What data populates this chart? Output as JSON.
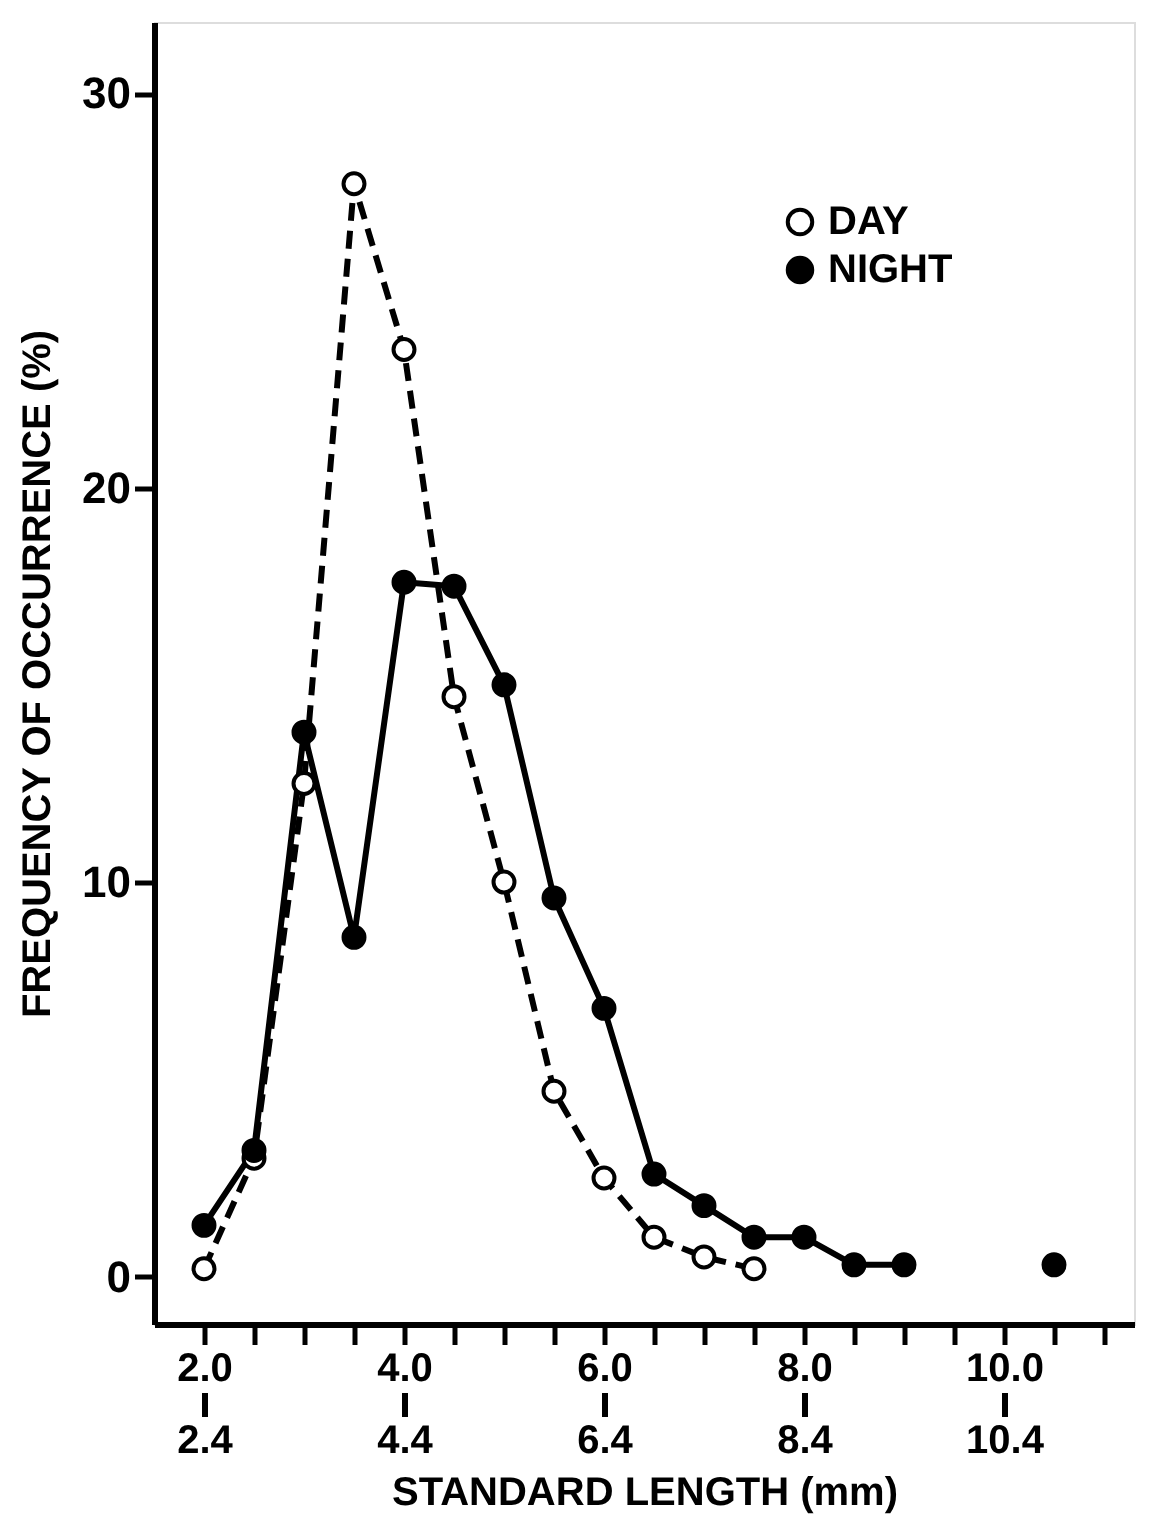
{
  "chart_data": {
    "type": "line",
    "xlabel": "STANDARD LENGTH (mm)",
    "ylabel": "FREQUENCY OF OCCURRENCE (%)",
    "xlim": [
      1.5,
      11.3
    ],
    "ylim": [
      -1.2,
      31.8
    ],
    "xticks": [
      {
        "value": 2,
        "label": "2.0"
      },
      {
        "value": 2.5,
        "label": null
      },
      {
        "value": 3,
        "label": null
      },
      {
        "value": 3.5,
        "label": null
      },
      {
        "value": 4,
        "label": "4.0"
      },
      {
        "value": 4.5,
        "label": null
      },
      {
        "value": 5,
        "label": null
      },
      {
        "value": 5.5,
        "label": null
      },
      {
        "value": 6,
        "label": "6.0"
      },
      {
        "value": 6.5,
        "label": null
      },
      {
        "value": 7,
        "label": null
      },
      {
        "value": 7.5,
        "label": null
      },
      {
        "value": 8,
        "label": "8.0"
      },
      {
        "value": 8.5,
        "label": null
      },
      {
        "value": 9,
        "label": null
      },
      {
        "value": 9.5,
        "label": null
      },
      {
        "value": 10,
        "label": "10.0"
      },
      {
        "value": 10.5,
        "label": null
      },
      {
        "value": 11,
        "label": null
      }
    ],
    "x2lim": [
      1.9,
      11.7
    ],
    "x2ticks": [
      2.4,
      4.4,
      6.4,
      8.4,
      10.4
    ],
    "yticks": [
      0,
      10,
      20,
      30
    ],
    "grid": false,
    "legend": "top right",
    "marker": "circle",
    "series": [
      {
        "name": "DAY",
        "color": "#000000",
        "line_style": "dashed",
        "x": [
          2.0,
          2.5,
          3.0,
          3.5,
          4.0,
          4.5,
          5.0,
          5.5,
          6.0,
          6.5,
          7.0,
          7.5
        ],
        "values": [
          0.2,
          3.0,
          12.5,
          27.7,
          23.5,
          14.7,
          10.0,
          4.7,
          2.5,
          1.0,
          0.5,
          0.2
        ]
      },
      {
        "name": "NIGHT",
        "color": "#000000",
        "line_style": "solid",
        "x": [
          2.0,
          2.5,
          3.0,
          3.5,
          4.0,
          4.5,
          5.0,
          5.5,
          6.0,
          6.5,
          7.0,
          7.5,
          8.0,
          8.5,
          9.0,
          9.5,
          10.0,
          10.5
        ],
        "values": [
          1.3,
          3.2,
          13.8,
          8.6,
          17.6,
          17.5,
          15.0,
          9.6,
          6.8,
          2.6,
          1.8,
          1.0,
          1.0,
          0.3,
          0.3,
          null,
          null,
          0.3
        ]
      }
    ]
  }
}
